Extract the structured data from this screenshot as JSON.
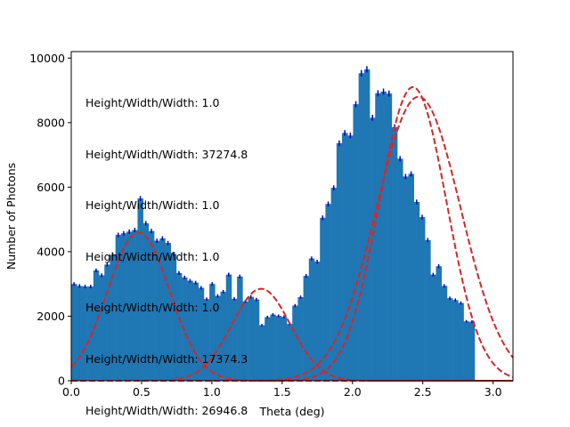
{
  "chart_data": {
    "type": "bar",
    "title": "",
    "xlabel": "Theta (deg)",
    "ylabel": "Number of Photons",
    "xlim": [
      0,
      3.1416
    ],
    "ylim": [
      0,
      10200
    ],
    "xticks": [
      0.0,
      0.5,
      1.0,
      1.5,
      2.0,
      2.5,
      3.0
    ],
    "xtick_labels": [
      "0.0",
      "0.5",
      "1.0",
      "1.5",
      "2.0",
      "2.5",
      "3.0"
    ],
    "yticks": [
      0,
      2000,
      4000,
      6000,
      8000,
      10000
    ],
    "ytick_labels": [
      "0",
      "2000",
      "4000",
      "6000",
      "8000",
      "10000"
    ],
    "bar_color": "#1f77b4",
    "errorbar_color": "#0000cc",
    "fit_color": "#d62728",
    "bin_width": 0.0393,
    "values": [
      3000,
      2940,
      2920,
      2920,
      3420,
      3270,
      3600,
      3900,
      4520,
      4570,
      4620,
      4670,
      5650,
      4880,
      4640,
      4340,
      4410,
      4270,
      3930,
      3340,
      3200,
      3100,
      3040,
      2880,
      2530,
      3000,
      2630,
      2760,
      3290,
      2540,
      3230,
      2460,
      2600,
      2520,
      1720,
      1970,
      2050,
      2010,
      1980,
      1760,
      2330,
      2590,
      3250,
      3790,
      3690,
      5050,
      5480,
      5980,
      7360,
      7680,
      7600,
      8570,
      9530,
      9650,
      8150,
      8910,
      8960,
      8900,
      7860,
      6880,
      6330,
      6410,
      5540,
      5070,
      4360,
      3290,
      3550,
      2940,
      2560,
      2500,
      2410,
      1840,
      1830
    ],
    "fits": [
      {
        "type": "gaussian",
        "amplitude": 4600,
        "center": 0.48,
        "sigma": 0.22
      },
      {
        "type": "gaussian",
        "amplitude": 2850,
        "center": 1.35,
        "sigma": 0.21
      },
      {
        "type": "gaussian",
        "amplitude": 9100,
        "center": 2.43,
        "sigma": 0.24
      },
      {
        "type": "gaussian",
        "amplitude": 8800,
        "center": 2.47,
        "sigma": 0.3
      }
    ],
    "annotations": [
      "Height/Width/Width: 1.0",
      "Height/Width/Width: 37274.8",
      "Height/Width/Width: 1.0",
      "Height/Width/Width: 1.0",
      "Height/Width/Width: 1.0",
      "Height/Width/Width: 17374.3",
      "Height/Width/Width: 26946.8"
    ]
  }
}
